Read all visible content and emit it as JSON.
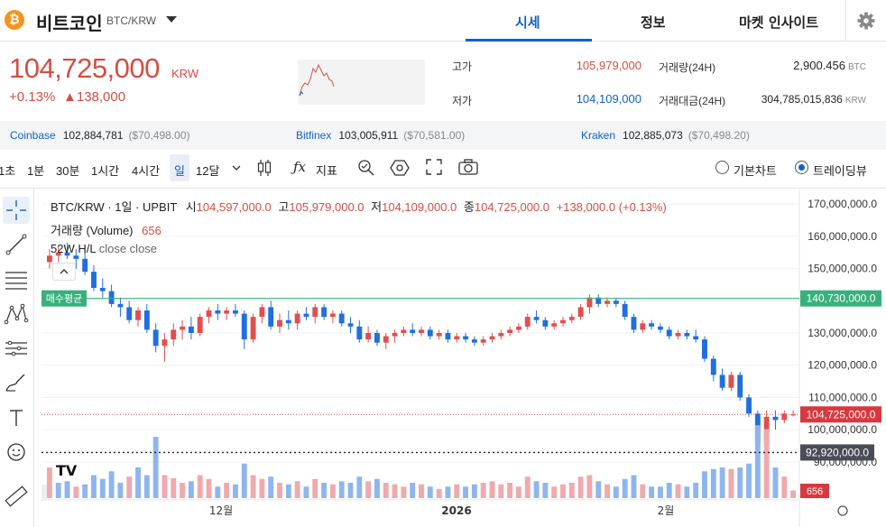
{
  "header": {
    "coin_icon": "bitcoin-icon",
    "coin_symbol_glyph": "₿",
    "coin_name": "비트코인",
    "pair": "BTC/KRW",
    "tabs": [
      {
        "label": "시세",
        "active": true
      },
      {
        "label": "정보",
        "active": false
      },
      {
        "label": "마켓 인사이트",
        "active": false
      }
    ],
    "settings_icon": "gear-icon"
  },
  "price": {
    "current": "104,725,000",
    "currency": "KRW",
    "change_pct": "+0.13%",
    "change_abs": "▲138,000"
  },
  "stats": {
    "high_label": "고가",
    "high_value": "105,979,000",
    "low_label": "저가",
    "low_value": "104,109,000",
    "volume_label": "거래량(24H)",
    "volume_value": "2,900.456",
    "volume_unit": "BTC",
    "amount_label": "거래대금(24H)",
    "amount_value": "304,785,015,836",
    "amount_unit": "KRW"
  },
  "exchanges": [
    {
      "name": "Coinbase",
      "price": "102,884,781",
      "usd": "($70,498.00)"
    },
    {
      "name": "Bitfinex",
      "price": "103,005,911",
      "usd": "($70,581.00)"
    },
    {
      "name": "Kraken",
      "price": "102,885,073",
      "usd": "($70,498.20)"
    }
  ],
  "toolbar": {
    "intervals": [
      "1초",
      "1분",
      "30분",
      "1시간",
      "4시간",
      "일",
      "12달"
    ],
    "selected_interval": "일",
    "indicator_label": "지표",
    "indicator_glyph": "ƒx",
    "view_basic": "기본차트",
    "view_trading": "트레이딩뷰",
    "selected_view": "트레이딩뷰"
  },
  "left_tools": [
    "crosshair-icon",
    "trend-line-icon",
    "fib-lines-icon",
    "pattern-icon",
    "prediction-icon",
    "brush-icon",
    "text-tool-icon",
    "emoji-icon",
    "ruler-icon"
  ],
  "chart_legend": {
    "symbol_line": "BTC/KRW · 1일 · UPBIT",
    "open_label": "시",
    "open_value": "104,597,000.0",
    "high_label": "고",
    "high_value": "105,979,000.0",
    "low_label": "저",
    "low_value": "104,109,000.0",
    "close_label": "종",
    "close_value": "104,725,000.0",
    "change": "+138,000.0 (+0.13%)",
    "volume_label": "거래량 (Volume)",
    "volume_value": "656",
    "hl_label": "52W H/L",
    "hl_params": "close close"
  },
  "chart_data": {
    "type": "candlestick",
    "y_ticks": [
      "170,000,000.0",
      "160,000,000.0",
      "150,000,000.0",
      "140,000,000.0",
      "130,000,000.0",
      "120,000,000.0",
      "110,000,000.0",
      "100,000,000.0",
      "90,000,000.0"
    ],
    "y_range": [
      88000000,
      172000000
    ],
    "x_ticks": [
      "12월",
      "2026",
      "2월"
    ],
    "avg_buy": {
      "label": "매수평균",
      "value": 140730000,
      "value_label": "140,730,000.0"
    },
    "current_price": {
      "value": 104725000,
      "value_label": "104,725,000.0"
    },
    "low_marker": {
      "value": 92920000,
      "value_label": "92,920,000.0"
    },
    "volume_badge": "656",
    "colors": {
      "up": "#e04f4f",
      "down": "#1f6fe0",
      "avg_line": "#38b07c",
      "vol_up": "#f0a9ad",
      "vol_down": "#8fb5f0"
    },
    "candles": [
      {
        "o": 152,
        "h": 156,
        "l": 150,
        "c": 154
      },
      {
        "o": 154,
        "h": 157,
        "l": 152,
        "c": 155
      },
      {
        "o": 155,
        "h": 158,
        "l": 153,
        "c": 154
      },
      {
        "o": 154,
        "h": 156,
        "l": 150,
        "c": 153
      },
      {
        "o": 153,
        "h": 155,
        "l": 148,
        "c": 149
      },
      {
        "o": 149,
        "h": 151,
        "l": 143,
        "c": 144
      },
      {
        "o": 144,
        "h": 147,
        "l": 141,
        "c": 143
      },
      {
        "o": 143,
        "h": 145,
        "l": 138,
        "c": 139
      },
      {
        "o": 139,
        "h": 141,
        "l": 135,
        "c": 138
      },
      {
        "o": 138,
        "h": 140,
        "l": 133,
        "c": 134
      },
      {
        "o": 134,
        "h": 138,
        "l": 132,
        "c": 137
      },
      {
        "o": 137,
        "h": 139,
        "l": 130,
        "c": 131
      },
      {
        "o": 131,
        "h": 133,
        "l": 124,
        "c": 126
      },
      {
        "o": 126,
        "h": 130,
        "l": 121,
        "c": 128
      },
      {
        "o": 128,
        "h": 133,
        "l": 126,
        "c": 131
      },
      {
        "o": 131,
        "h": 134,
        "l": 128,
        "c": 132
      },
      {
        "o": 132,
        "h": 135,
        "l": 128,
        "c": 130
      },
      {
        "o": 130,
        "h": 136,
        "l": 129,
        "c": 135
      },
      {
        "o": 135,
        "h": 138,
        "l": 133,
        "c": 137
      },
      {
        "o": 137,
        "h": 139,
        "l": 134,
        "c": 136
      },
      {
        "o": 136,
        "h": 138,
        "l": 134,
        "c": 137
      },
      {
        "o": 137,
        "h": 139,
        "l": 135,
        "c": 136
      },
      {
        "o": 136,
        "h": 137,
        "l": 125,
        "c": 128
      },
      {
        "o": 128,
        "h": 136,
        "l": 127,
        "c": 135
      },
      {
        "o": 135,
        "h": 139,
        "l": 133,
        "c": 138
      },
      {
        "o": 138,
        "h": 140,
        "l": 131,
        "c": 132
      },
      {
        "o": 132,
        "h": 136,
        "l": 130,
        "c": 134
      },
      {
        "o": 134,
        "h": 137,
        "l": 131,
        "c": 133
      },
      {
        "o": 133,
        "h": 137,
        "l": 131,
        "c": 136
      },
      {
        "o": 136,
        "h": 138,
        "l": 134,
        "c": 135
      },
      {
        "o": 135,
        "h": 139,
        "l": 133,
        "c": 138
      },
      {
        "o": 138,
        "h": 139,
        "l": 134,
        "c": 135
      },
      {
        "o": 135,
        "h": 137,
        "l": 133,
        "c": 136
      },
      {
        "o": 136,
        "h": 137,
        "l": 132,
        "c": 133
      },
      {
        "o": 133,
        "h": 135,
        "l": 130,
        "c": 132
      },
      {
        "o": 132,
        "h": 134,
        "l": 127,
        "c": 128
      },
      {
        "o": 128,
        "h": 132,
        "l": 127,
        "c": 130
      },
      {
        "o": 130,
        "h": 131,
        "l": 126,
        "c": 127
      },
      {
        "o": 127,
        "h": 130,
        "l": 125,
        "c": 129
      },
      {
        "o": 129,
        "h": 131,
        "l": 127,
        "c": 130
      },
      {
        "o": 130,
        "h": 132,
        "l": 129,
        "c": 131
      },
      {
        "o": 131,
        "h": 133,
        "l": 129,
        "c": 130
      },
      {
        "o": 130,
        "h": 132,
        "l": 129,
        "c": 131
      },
      {
        "o": 131,
        "h": 132,
        "l": 128,
        "c": 129
      },
      {
        "o": 129,
        "h": 131,
        "l": 128,
        "c": 130
      },
      {
        "o": 130,
        "h": 131,
        "l": 127,
        "c": 128
      },
      {
        "o": 128,
        "h": 130,
        "l": 127,
        "c": 129
      },
      {
        "o": 129,
        "h": 130,
        "l": 127,
        "c": 128
      },
      {
        "o": 128,
        "h": 129,
        "l": 126,
        "c": 127
      },
      {
        "o": 127,
        "h": 129,
        "l": 126,
        "c": 128
      },
      {
        "o": 128,
        "h": 130,
        "l": 127,
        "c": 129
      },
      {
        "o": 129,
        "h": 131,
        "l": 128,
        "c": 130
      },
      {
        "o": 130,
        "h": 132,
        "l": 129,
        "c": 131
      },
      {
        "o": 131,
        "h": 133,
        "l": 130,
        "c": 132
      },
      {
        "o": 132,
        "h": 136,
        "l": 131,
        "c": 135
      },
      {
        "o": 135,
        "h": 137,
        "l": 133,
        "c": 134
      },
      {
        "o": 134,
        "h": 135,
        "l": 131,
        "c": 132
      },
      {
        "o": 132,
        "h": 134,
        "l": 131,
        "c": 133
      },
      {
        "o": 133,
        "h": 135,
        "l": 132,
        "c": 134
      },
      {
        "o": 134,
        "h": 136,
        "l": 133,
        "c": 135
      },
      {
        "o": 135,
        "h": 139,
        "l": 134,
        "c": 138
      },
      {
        "o": 138,
        "h": 142,
        "l": 136,
        "c": 141
      },
      {
        "o": 141,
        "h": 142,
        "l": 138,
        "c": 139
      },
      {
        "o": 139,
        "h": 141,
        "l": 138,
        "c": 140
      },
      {
        "o": 140,
        "h": 141,
        "l": 138,
        "c": 139
      },
      {
        "o": 139,
        "h": 140,
        "l": 134,
        "c": 135
      },
      {
        "o": 135,
        "h": 136,
        "l": 130,
        "c": 131
      },
      {
        "o": 131,
        "h": 134,
        "l": 130,
        "c": 133
      },
      {
        "o": 133,
        "h": 134,
        "l": 131,
        "c": 132
      },
      {
        "o": 132,
        "h": 133,
        "l": 130,
        "c": 131
      },
      {
        "o": 131,
        "h": 132,
        "l": 128,
        "c": 129
      },
      {
        "o": 129,
        "h": 131,
        "l": 128,
        "c": 130
      },
      {
        "o": 130,
        "h": 131,
        "l": 128,
        "c": 129
      },
      {
        "o": 129,
        "h": 131,
        "l": 127,
        "c": 128
      },
      {
        "o": 128,
        "h": 129,
        "l": 121,
        "c": 122
      },
      {
        "o": 122,
        "h": 123,
        "l": 115,
        "c": 117
      },
      {
        "o": 117,
        "h": 119,
        "l": 112,
        "c": 113
      },
      {
        "o": 113,
        "h": 118,
        "l": 112,
        "c": 117
      },
      {
        "o": 117,
        "h": 118,
        "l": 109,
        "c": 110
      },
      {
        "o": 110,
        "h": 111,
        "l": 104,
        "c": 105
      },
      {
        "o": 105,
        "h": 106,
        "l": 91,
        "c": 96
      },
      {
        "o": 96,
        "h": 106,
        "l": 93,
        "c": 104
      },
      {
        "o": 104,
        "h": 106,
        "l": 100,
        "c": 103
      },
      {
        "o": 103,
        "h": 106,
        "l": 102,
        "c": 105
      },
      {
        "o": 104.6,
        "h": 106,
        "l": 104.1,
        "c": 104.7
      }
    ],
    "volumes": [
      {
        "v": 40,
        "up": true
      },
      {
        "v": 20,
        "up": false
      },
      {
        "v": 22,
        "up": false
      },
      {
        "v": 15,
        "up": true
      },
      {
        "v": 18,
        "up": false
      },
      {
        "v": 30,
        "up": false
      },
      {
        "v": 25,
        "up": false
      },
      {
        "v": 35,
        "up": false
      },
      {
        "v": 20,
        "up": false
      },
      {
        "v": 28,
        "up": true
      },
      {
        "v": 40,
        "up": false
      },
      {
        "v": 30,
        "up": false
      },
      {
        "v": 80,
        "up": false
      },
      {
        "v": 30,
        "up": true
      },
      {
        "v": 26,
        "up": true
      },
      {
        "v": 20,
        "up": true
      },
      {
        "v": 22,
        "up": false
      },
      {
        "v": 30,
        "up": true
      },
      {
        "v": 25,
        "up": true
      },
      {
        "v": 15,
        "up": false
      },
      {
        "v": 20,
        "up": true
      },
      {
        "v": 18,
        "up": false
      },
      {
        "v": 45,
        "up": false
      },
      {
        "v": 30,
        "up": true
      },
      {
        "v": 25,
        "up": true
      },
      {
        "v": 28,
        "up": false
      },
      {
        "v": 20,
        "up": true
      },
      {
        "v": 18,
        "up": false
      },
      {
        "v": 22,
        "up": true
      },
      {
        "v": 15,
        "up": false
      },
      {
        "v": 25,
        "up": true
      },
      {
        "v": 20,
        "up": false
      },
      {
        "v": 18,
        "up": true
      },
      {
        "v": 22,
        "up": false
      },
      {
        "v": 20,
        "up": false
      },
      {
        "v": 28,
        "up": false
      },
      {
        "v": 22,
        "up": true
      },
      {
        "v": 25,
        "up": false
      },
      {
        "v": 20,
        "up": true
      },
      {
        "v": 18,
        "up": true
      },
      {
        "v": 15,
        "up": true
      },
      {
        "v": 20,
        "up": false
      },
      {
        "v": 18,
        "up": true
      },
      {
        "v": 15,
        "up": false
      },
      {
        "v": 12,
        "up": true
      },
      {
        "v": 15,
        "up": false
      },
      {
        "v": 18,
        "up": true
      },
      {
        "v": 15,
        "up": false
      },
      {
        "v": 18,
        "up": false
      },
      {
        "v": 20,
        "up": true
      },
      {
        "v": 22,
        "up": true
      },
      {
        "v": 18,
        "up": true
      },
      {
        "v": 20,
        "up": true
      },
      {
        "v": 15,
        "up": true
      },
      {
        "v": 28,
        "up": true
      },
      {
        "v": 22,
        "up": false
      },
      {
        "v": 20,
        "up": false
      },
      {
        "v": 15,
        "up": true
      },
      {
        "v": 18,
        "up": true
      },
      {
        "v": 20,
        "up": true
      },
      {
        "v": 28,
        "up": true
      },
      {
        "v": 30,
        "up": true
      },
      {
        "v": 22,
        "up": false
      },
      {
        "v": 18,
        "up": true
      },
      {
        "v": 15,
        "up": false
      },
      {
        "v": 25,
        "up": false
      },
      {
        "v": 30,
        "up": false
      },
      {
        "v": 18,
        "up": true
      },
      {
        "v": 15,
        "up": false
      },
      {
        "v": 15,
        "up": false
      },
      {
        "v": 20,
        "up": false
      },
      {
        "v": 18,
        "up": true
      },
      {
        "v": 15,
        "up": false
      },
      {
        "v": 20,
        "up": false
      },
      {
        "v": 35,
        "up": false
      },
      {
        "v": 38,
        "up": false
      },
      {
        "v": 40,
        "up": false
      },
      {
        "v": 38,
        "up": true
      },
      {
        "v": 40,
        "up": false
      },
      {
        "v": 45,
        "up": false
      },
      {
        "v": 95,
        "up": false
      },
      {
        "v": 90,
        "up": true
      },
      {
        "v": 40,
        "up": false
      },
      {
        "v": 28,
        "up": true
      },
      {
        "v": 10,
        "up": true
      }
    ]
  }
}
